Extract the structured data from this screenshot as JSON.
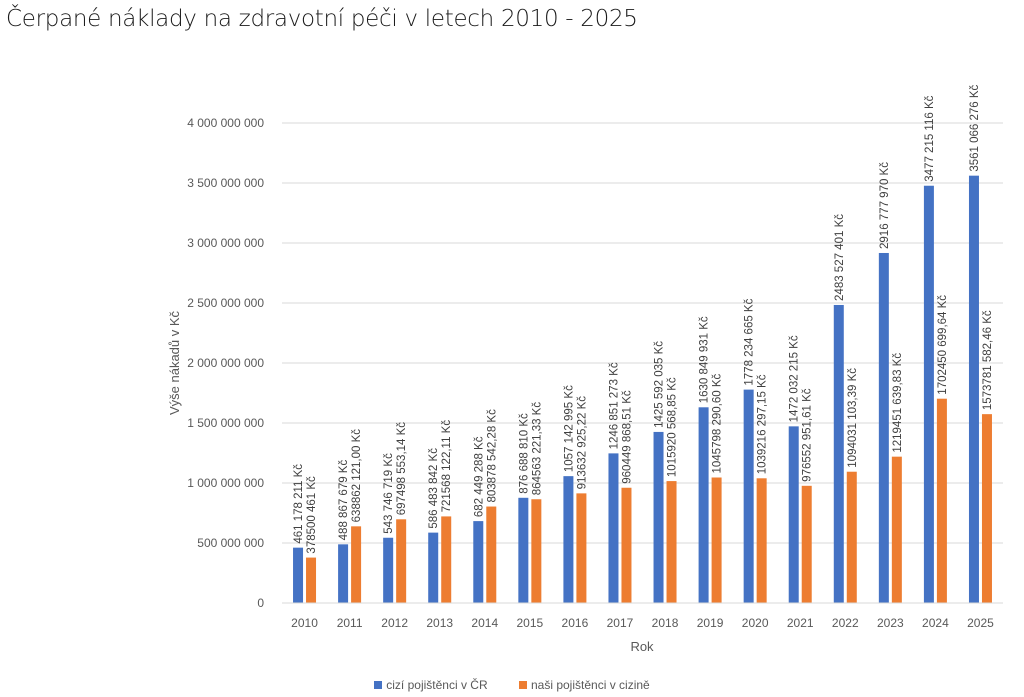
{
  "page": {
    "title": "Čerpané náklady na zdravotní péči v letech 2010 - 2025"
  },
  "chart_data": {
    "type": "bar",
    "title": "Čerpané náklady na zdravotní péči v letech 2010 - 2025",
    "xlabel": "Rok",
    "ylabel": "Výše nákadů v Kč",
    "ylim": [
      0,
      4000000000
    ],
    "grid": true,
    "legend_position": "bottom",
    "y_ticks": [
      0,
      500000000,
      1000000000,
      1500000000,
      2000000000,
      2500000000,
      3000000000,
      3500000000,
      4000000000
    ],
    "y_tick_labels": [
      "0",
      "500 000 000",
      "1 000 000 000",
      "1 500 000 000",
      "2 000 000 000",
      "2 500 000 000",
      "3 000 000 000",
      "3 500 000 000",
      "4 000 000 000"
    ],
    "categories": [
      "2010",
      "2011",
      "2012",
      "2013",
      "2014",
      "2015",
      "2016",
      "2017",
      "2018",
      "2019",
      "2020",
      "2021",
      "2022",
      "2023",
      "2024",
      "2025"
    ],
    "series": [
      {
        "name": "cizí pojištěnci v ČR",
        "color": "#4472C4",
        "values": [
          461178211,
          488867679,
          543746719,
          586483842,
          682449288,
          876688810,
          1057142995,
          1246851273,
          1425592035,
          1630849931,
          1778234665,
          1472032215,
          2483527401,
          2916777970,
          3477215116,
          3561066276
        ],
        "labels": [
          "461 178 211 Kč",
          "488 867 679 Kč",
          "543 746 719 Kč",
          "586 483 842 Kč",
          "682 449 288 Kč",
          "876 688 810 Kč",
          "1057 142 995 Kč",
          "1246 851 273 Kč",
          "1425 592 035 Kč",
          "1630 849 931 Kč",
          "1778 234 665 Kč",
          "1472 032 215 Kč",
          "2483 527 401 Kč",
          "2916 777 970 Kč",
          "3477 215 116 Kč",
          "3561 066 276 Kč"
        ]
      },
      {
        "name": "naši pojištěnci v cizině",
        "color": "#ED7D31",
        "values": [
          378500461,
          638862121.0,
          697498553.14,
          721568122.11,
          803878542.28,
          864563221.33,
          913632925.22,
          960449868.51,
          1015920568.85,
          1045798290.6,
          1039216297.15,
          976552951.61,
          1094031103.39,
          1219451639.83,
          1702450699.64,
          1573781582.46
        ],
        "labels": [
          "378500 461 Kč",
          "638862 121,00 Kč",
          "697498 553,14 Kč",
          "721568 122,11 Kč",
          "803878 542,28 Kč",
          "864563 221,33 Kč",
          "913632 925,22 Kč",
          "960449 868,51 Kč",
          "1015920 568,85 Kč",
          "1045798 290,60 Kč",
          "1039216 297,15 Kč",
          "976552 951,61 Kč",
          "1094031 103,39 Kč",
          "1219451 639,83 Kč",
          "1702450 699,64 Kč",
          "1573781 582,46 Kč"
        ]
      }
    ]
  }
}
